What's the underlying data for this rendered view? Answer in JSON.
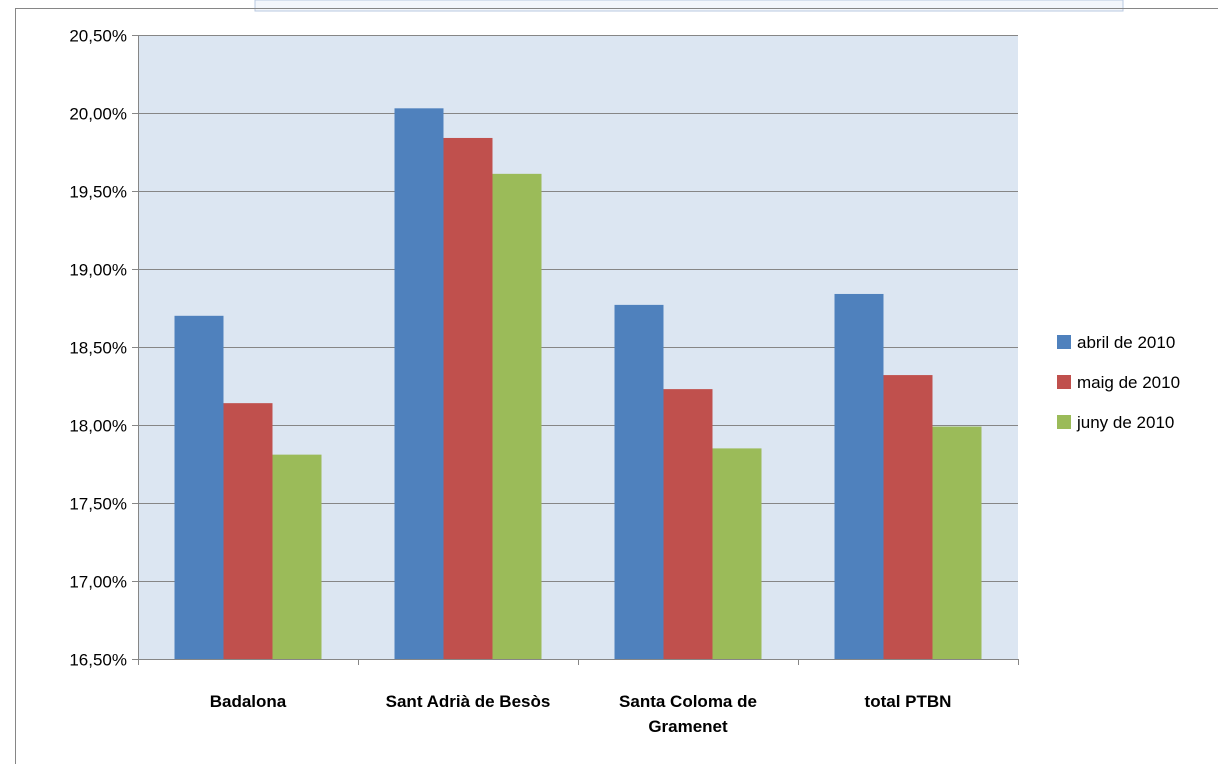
{
  "chart_data": {
    "type": "bar",
    "categories": [
      [
        "Badalona"
      ],
      [
        "Sant Adrià de Besòs"
      ],
      [
        "Santa Coloma de",
        "Gramenet"
      ],
      [
        "total PTBN"
      ]
    ],
    "series": [
      {
        "name": "abril de 2010",
        "color": "#4f81bd",
        "values": [
          18.7,
          20.03,
          18.77,
          18.84
        ]
      },
      {
        "name": "maig de 2010",
        "color": "#c0504d",
        "values": [
          18.14,
          19.84,
          18.23,
          18.32
        ]
      },
      {
        "name": "juny de 2010",
        "color": "#9bbb59",
        "values": [
          17.81,
          19.61,
          17.85,
          17.99
        ]
      }
    ],
    "ylim": [
      16.5,
      20.5
    ],
    "yticks": [
      "16,50%",
      "17,00%",
      "17,50%",
      "18,00%",
      "18,50%",
      "19,00%",
      "19,50%",
      "20,00%",
      "20,50%"
    ],
    "ytick_values": [
      16.5,
      17.0,
      17.5,
      18.0,
      18.5,
      19.0,
      19.5,
      20.0,
      20.5
    ],
    "title": "",
    "xlabel": "",
    "ylabel": "",
    "grid": true,
    "legend": "right",
    "plot_background": "#dce6f2"
  }
}
